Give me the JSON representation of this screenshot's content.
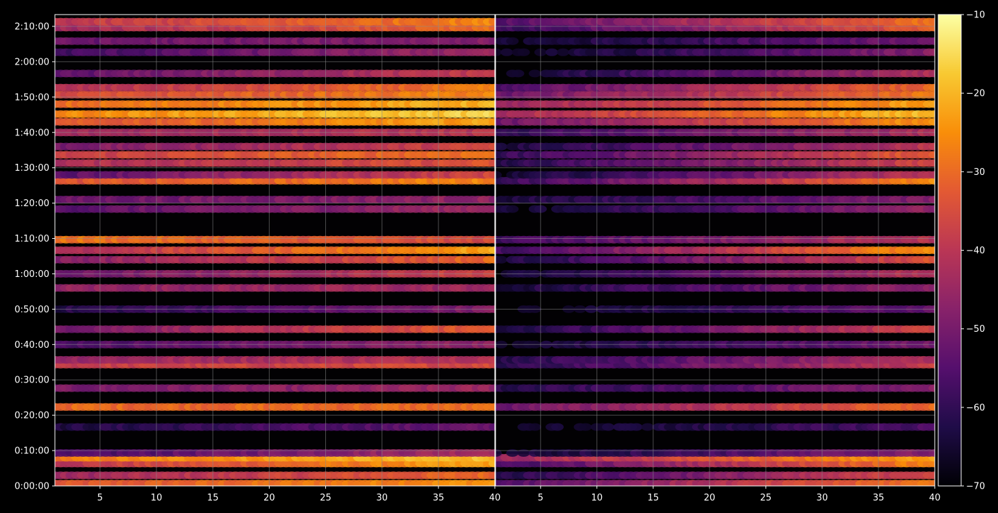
{
  "figure": {
    "background": "#000000",
    "grid_color": "#8c8c8c",
    "axis_color": "#ffffff"
  },
  "chart_data": {
    "type": "heatmap",
    "colormap": "inferno",
    "grid": true,
    "panels": [
      {
        "name": "left",
        "xlim": [
          1,
          40
        ],
        "ylim": [
          0,
          8000
        ],
        "x_ticks": [
          {
            "value": 5,
            "label": "5"
          },
          {
            "value": 10,
            "label": "10"
          },
          {
            "value": 15,
            "label": "15"
          },
          {
            "value": 20,
            "label": "20"
          },
          {
            "value": 25,
            "label": "25"
          },
          {
            "value": 30,
            "label": "30"
          },
          {
            "value": 35,
            "label": "35"
          },
          {
            "value": 40,
            "label": "40"
          }
        ],
        "y_ticks": [
          {
            "value": 0,
            "label": "0:00:00"
          },
          {
            "value": 600,
            "label": "0:10:00"
          },
          {
            "value": 1200,
            "label": "0:20:00"
          },
          {
            "value": 1800,
            "label": "0:30:00"
          },
          {
            "value": 2400,
            "label": "0:40:00"
          },
          {
            "value": 3000,
            "label": "0:50:00"
          },
          {
            "value": 3600,
            "label": "1:00:00"
          },
          {
            "value": 4200,
            "label": "1:10:00"
          },
          {
            "value": 4800,
            "label": "1:20:00"
          },
          {
            "value": 5400,
            "label": "1:30:00"
          },
          {
            "value": 6000,
            "label": "1:40:00"
          },
          {
            "value": 6600,
            "label": "1:50:00"
          },
          {
            "value": 7200,
            "label": "2:00:00"
          },
          {
            "value": 7800,
            "label": "2:10:00"
          }
        ]
      },
      {
        "name": "right",
        "xlim": [
          1,
          40
        ],
        "ylim": [
          0,
          8000
        ],
        "x_ticks": [
          {
            "value": 5,
            "label": "5"
          },
          {
            "value": 10,
            "label": "10"
          },
          {
            "value": 15,
            "label": "15"
          },
          {
            "value": 20,
            "label": "20"
          },
          {
            "value": 25,
            "label": "25"
          },
          {
            "value": 30,
            "label": "30"
          },
          {
            "value": 35,
            "label": "35"
          },
          {
            "value": 40,
            "label": "40"
          }
        ]
      }
    ],
    "value_range": [
      -70,
      -10
    ],
    "colorbar": {
      "ticks": [
        {
          "value": -10,
          "label": "−10"
        },
        {
          "value": -20,
          "label": "−20"
        },
        {
          "value": -30,
          "label": "−30"
        },
        {
          "value": -40,
          "label": "−40"
        },
        {
          "value": -50,
          "label": "−50"
        },
        {
          "value": -60,
          "label": "−60"
        },
        {
          "value": -70,
          "label": "−70"
        }
      ]
    },
    "bands": [
      {
        "t": 40,
        "left": [
          -34,
          -24
        ],
        "right": [
          -55,
          -28
        ]
      },
      {
        "t": 180,
        "left": [
          -45,
          -30
        ],
        "right": [
          -62,
          -35
        ]
      },
      {
        "t": 380,
        "left": [
          -40,
          -22
        ],
        "right": [
          -58,
          -26
        ]
      },
      {
        "t": 480,
        "left": [
          -28,
          -18
        ],
        "right": [
          -45,
          -22
        ]
      },
      {
        "t": 560,
        "left": [
          -58,
          -42
        ],
        "right": [
          -66,
          -48
        ]
      },
      {
        "t": 1000,
        "left": [
          -63,
          -52
        ],
        "right": [
          -68,
          -56
        ]
      },
      {
        "t": 1340,
        "left": [
          -30,
          -30
        ],
        "right": [
          -52,
          -30
        ]
      },
      {
        "t": 1660,
        "left": [
          -50,
          -45
        ],
        "right": [
          -62,
          -48
        ]
      },
      {
        "t": 2060,
        "left": [
          -38,
          -35
        ],
        "right": [
          -62,
          -38
        ]
      },
      {
        "t": 2140,
        "left": [
          -45,
          -40
        ],
        "right": [
          -62,
          -42
        ]
      },
      {
        "t": 2400,
        "left": [
          -56,
          -46
        ],
        "right": [
          -66,
          -50
        ]
      },
      {
        "t": 2660,
        "left": [
          -50,
          -32
        ],
        "right": [
          -64,
          -36
        ]
      },
      {
        "t": 3000,
        "left": [
          -62,
          -48
        ],
        "right": [
          -68,
          -52
        ]
      },
      {
        "t": 3360,
        "left": [
          -46,
          -44
        ],
        "right": [
          -64,
          -46
        ]
      },
      {
        "t": 3600,
        "left": [
          -52,
          -36
        ],
        "right": [
          -66,
          -40
        ]
      },
      {
        "t": 3840,
        "left": [
          -48,
          -30
        ],
        "right": [
          -64,
          -34
        ]
      },
      {
        "t": 4000,
        "left": [
          -42,
          -22
        ],
        "right": [
          -58,
          -24
        ]
      },
      {
        "t": 4180,
        "left": [
          -28,
          -36
        ],
        "right": [
          -58,
          -40
        ]
      },
      {
        "t": 4700,
        "left": [
          -54,
          -44
        ],
        "right": [
          -66,
          -46
        ]
      },
      {
        "t": 4860,
        "left": [
          -52,
          -46
        ],
        "right": [
          -64,
          -48
        ]
      },
      {
        "t": 5180,
        "left": [
          -34,
          -26
        ],
        "right": [
          -60,
          -26
        ]
      },
      {
        "t": 5280,
        "left": [
          -54,
          -36
        ],
        "right": [
          -66,
          -40
        ]
      },
      {
        "t": 5480,
        "left": [
          -42,
          -34
        ],
        "right": [
          -62,
          -36
        ]
      },
      {
        "t": 5620,
        "left": [
          -38,
          -28
        ],
        "right": [
          -60,
          -32
        ]
      },
      {
        "t": 5760,
        "left": [
          -50,
          -36
        ],
        "right": [
          -64,
          -40
        ]
      },
      {
        "t": 6000,
        "left": [
          -44,
          -40
        ],
        "right": [
          -60,
          -42
        ]
      },
      {
        "t": 6180,
        "left": [
          -34,
          -22
        ],
        "right": [
          -52,
          -24
        ]
      },
      {
        "t": 6310,
        "left": [
          -26,
          -16
        ],
        "right": [
          -44,
          -18
        ]
      },
      {
        "t": 6480,
        "left": [
          -30,
          -20
        ],
        "right": [
          -46,
          -22
        ]
      },
      {
        "t": 6640,
        "left": [
          -36,
          -26
        ],
        "right": [
          -52,
          -28
        ]
      },
      {
        "t": 6760,
        "left": [
          -42,
          -28
        ],
        "right": [
          -56,
          -30
        ]
      },
      {
        "t": 7000,
        "left": [
          -54,
          -38
        ],
        "right": [
          -66,
          -42
        ]
      },
      {
        "t": 7360,
        "left": [
          -58,
          -44
        ],
        "right": [
          -68,
          -48
        ]
      },
      {
        "t": 7550,
        "left": [
          -52,
          -48
        ],
        "right": [
          -66,
          -50
        ]
      },
      {
        "t": 7780,
        "left": [
          -44,
          -30
        ],
        "right": [
          -60,
          -32
        ]
      },
      {
        "t": 7880,
        "left": [
          -40,
          -26
        ],
        "right": [
          -56,
          -28
        ]
      }
    ]
  }
}
